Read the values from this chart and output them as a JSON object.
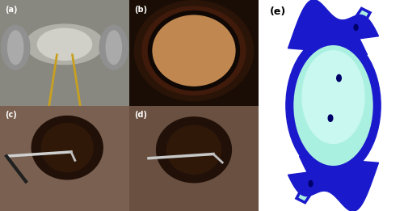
{
  "figure_width": 5.0,
  "figure_height": 2.61,
  "dpi": 100,
  "bg_color": "#ffffff",
  "panel_labels": [
    "(a)",
    "(b)",
    "(c)",
    "(d)",
    "(e)"
  ],
  "label_color": "#ffffff",
  "label_color_e": "#000000",
  "dark_blue": "#1a1acc",
  "light_blue": "#aaf0e0",
  "light_blue2": "#c8f8f0",
  "panel_a_color": "#888880",
  "panel_b_color": "#1a0d05",
  "panel_c_color": "#7a6050",
  "panel_d_color": "#6a5040"
}
